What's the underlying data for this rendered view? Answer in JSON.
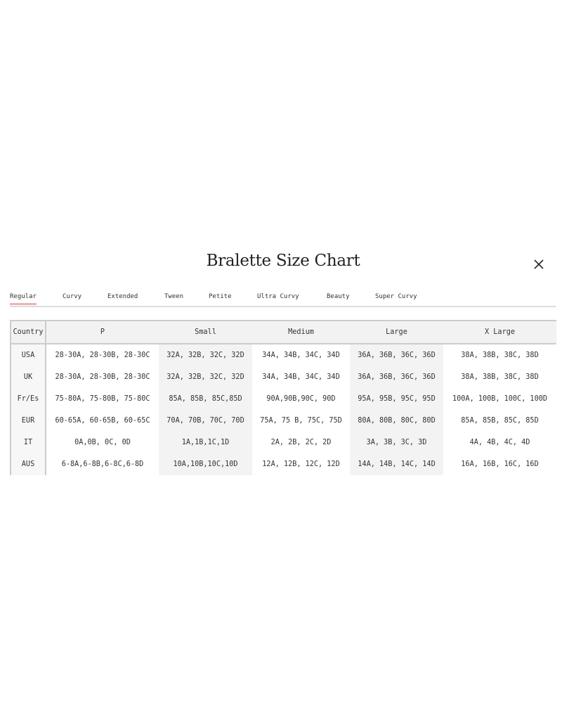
{
  "title": "Bralette Size Chart",
  "close_icon": "close-x-icon",
  "tabs": [
    "Regular",
    "Curvy",
    "Extended",
    "Tween",
    "Petite",
    "Ultra Curvy",
    "Beauty",
    "Super Curvy"
  ],
  "active_tab": "Regular",
  "accent_color": "#e9b4b4",
  "table": {
    "headers": [
      "Country",
      "P",
      "Small",
      "Medium",
      "Large",
      "X Large"
    ],
    "rows": [
      [
        "USA",
        "28-30A, 28-30B, 28-30C",
        "32A, 32B, 32C, 32D",
        "34A, 34B, 34C, 34D",
        "36A, 36B, 36C, 36D",
        "38A, 38B, 38C, 38D"
      ],
      [
        "UK",
        "28-30A, 28-30B, 28-30C",
        "32A, 32B, 32C, 32D",
        "34A, 34B, 34C, 34D",
        "36A, 36B, 36C, 36D",
        "38A, 38B, 38C, 38D"
      ],
      [
        "Fr/Es",
        "75-80A, 75-80B, 75-80C",
        "85A, 85B, 85C,85D",
        "90A,90B,90C, 90D",
        "95A, 95B, 95C, 95D",
        "100A, 100B, 100C, 100D"
      ],
      [
        "EUR",
        "60-65A, 60-65B, 60-65C",
        "70A, 70B, 70C, 70D",
        "75A, 75 B, 75C, 75D",
        "80A, 80B, 80C, 80D",
        "85A, 85B, 85C, 85D"
      ],
      [
        "IT",
        "0A,0B, 0C, 0D",
        "1A,1B,1C,1D",
        "2A, 2B, 2C, 2D",
        "3A, 3B, 3C, 3D",
        "4A, 4B, 4C, 4D"
      ],
      [
        "AUS",
        "6-8A,6-8B,6-8C,6-8D",
        "10A,10B,10C,10D",
        "12A, 12B, 12C, 12D",
        "14A, 14B, 14C, 14D",
        "16A, 16B, 16C, 16D"
      ]
    ]
  }
}
